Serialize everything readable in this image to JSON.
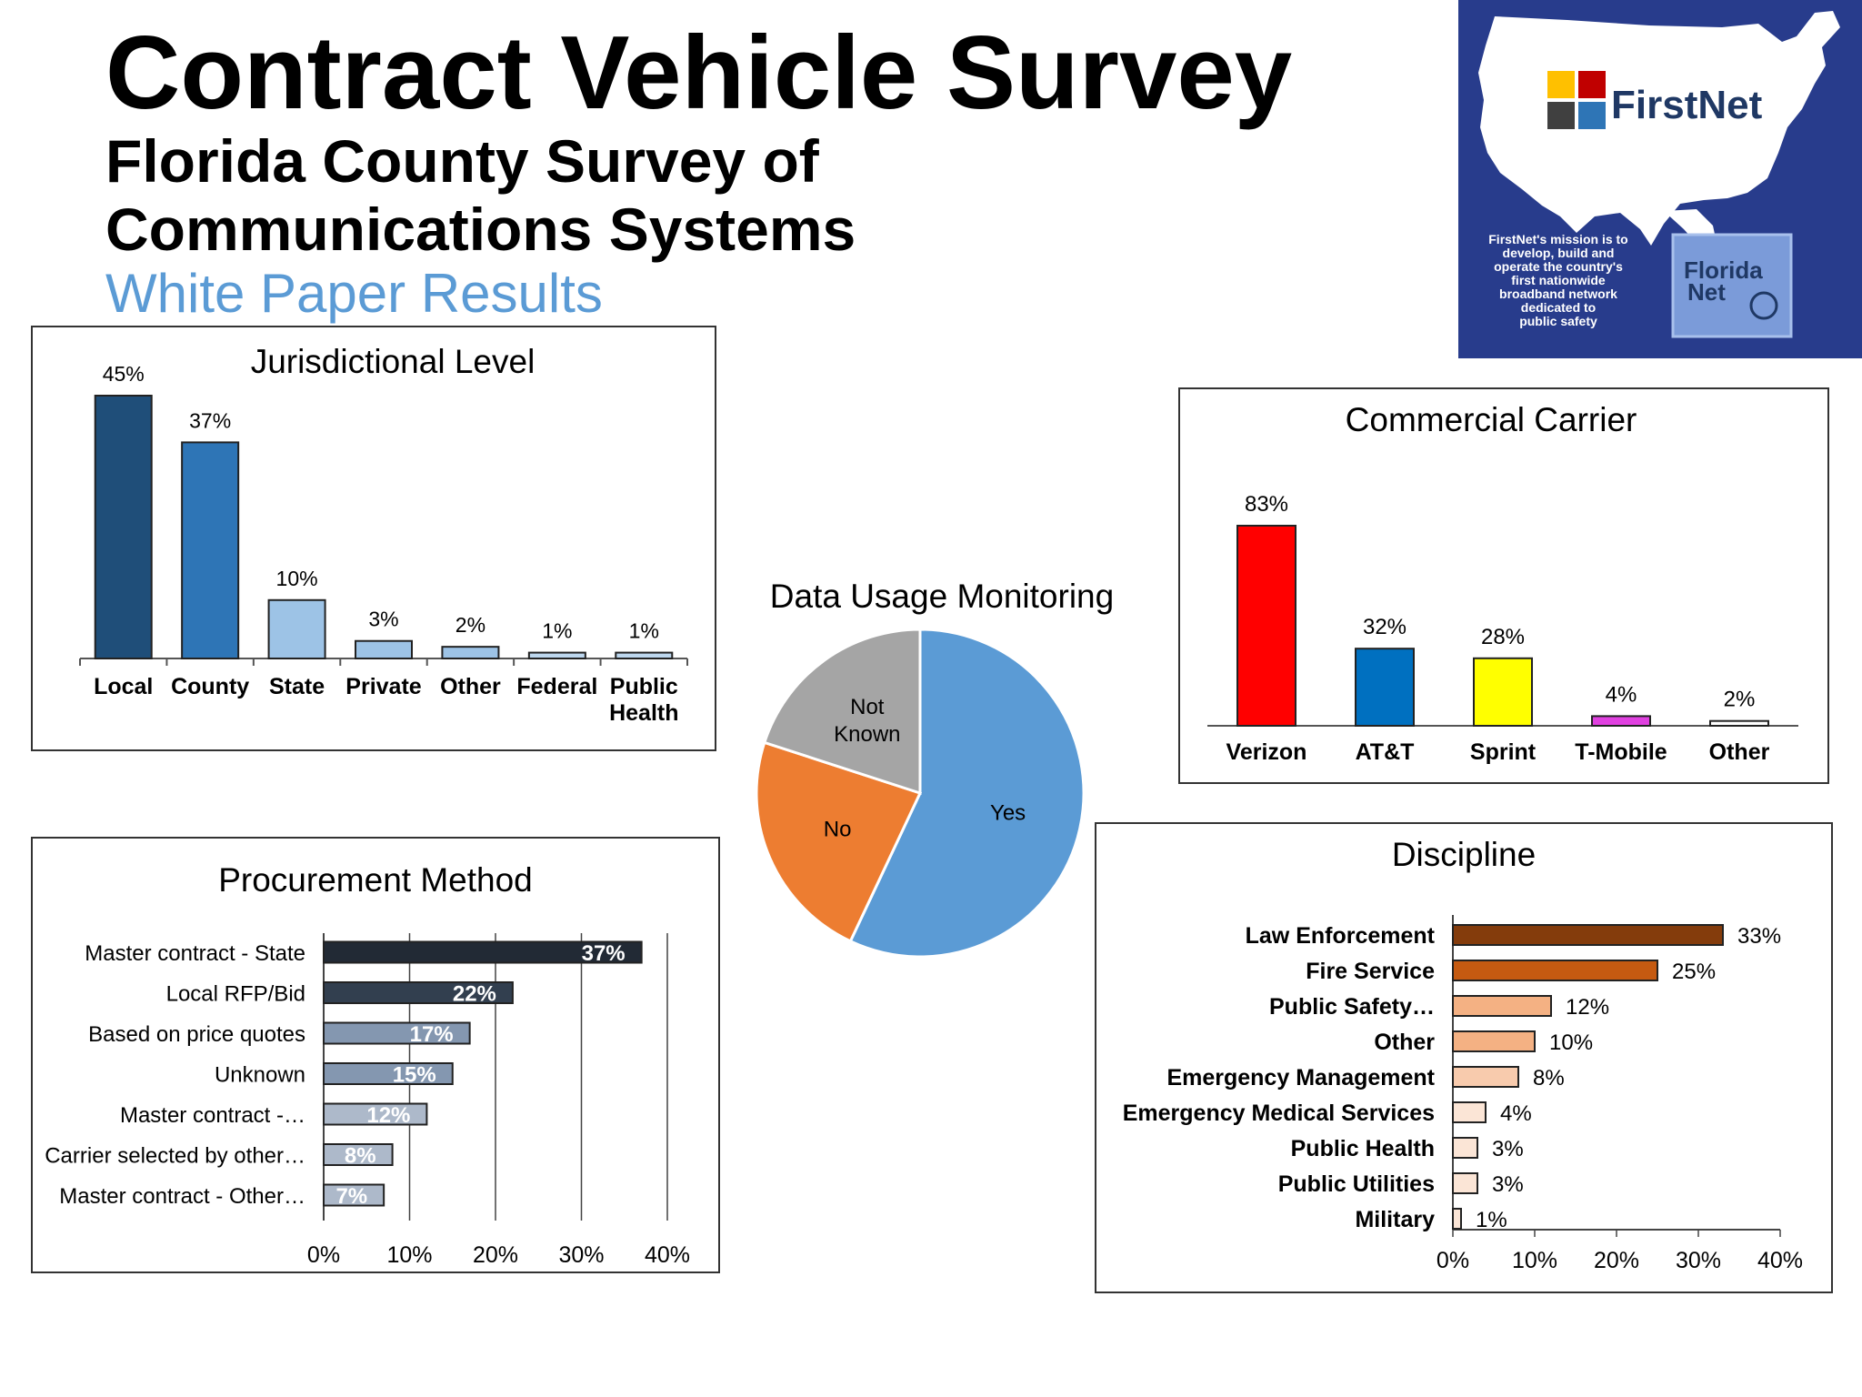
{
  "header": {
    "title": "Contract Vehicle Survey",
    "subtitle_line1": "Florida County Survey of",
    "subtitle_line2": "Communications Systems",
    "tagline": "White Paper Results"
  },
  "logo": {
    "brand": "FirstNet",
    "mission": [
      "FirstNet's mission is to",
      "develop, build and",
      "operate the country's",
      "first nationwide",
      "broadband network",
      "dedicated to",
      "public safety"
    ],
    "badge_line1": "Florida",
    "badge_line2": "Net",
    "colors": {
      "background": "#283c8c",
      "map": "#ffffff"
    }
  },
  "chart_data": [
    {
      "id": "jurisdictional",
      "type": "bar",
      "title": "Jurisdictional Level",
      "categories": [
        "Local",
        "County",
        "State",
        "Private",
        "Other",
        "Federal",
        "Public Health"
      ],
      "values": [
        45,
        37,
        10,
        3,
        2,
        1,
        1
      ],
      "value_labels": [
        "45%",
        "37%",
        "10%",
        "3%",
        "2%",
        "1%",
        "1%"
      ],
      "colors": [
        "#1f4e79",
        "#2e75b6",
        "#9dc3e6",
        "#9dc3e6",
        "#9dc3e6",
        "#bdd7ee",
        "#bdd7ee"
      ],
      "ylim": [
        0,
        45
      ]
    },
    {
      "id": "carrier",
      "type": "bar",
      "title": "Commercial Carrier",
      "categories": [
        "Verizon",
        "AT&T",
        "Sprint",
        "T-Mobile",
        "Other"
      ],
      "values": [
        83,
        32,
        28,
        4,
        2
      ],
      "value_labels": [
        "83%",
        "32%",
        "28%",
        "4%",
        "2%"
      ],
      "colors": [
        "#ff0000",
        "#0070c0",
        "#ffff00",
        "#e040e0",
        "#ffffff"
      ],
      "ylim": [
        0,
        83
      ]
    },
    {
      "id": "data_usage",
      "type": "pie",
      "title": "Data Usage Monitoring",
      "slices": [
        {
          "label": "Yes",
          "value": 57,
          "color": "#5b9bd5"
        },
        {
          "label": "No",
          "value": 23,
          "color": "#ed7d31"
        },
        {
          "label": "Not Known",
          "value": 20,
          "color": "#a5a5a5"
        }
      ]
    },
    {
      "id": "procurement",
      "type": "bar",
      "orientation": "horizontal",
      "title": "Procurement Method",
      "categories": [
        "Master contract - State",
        "Local RFP/Bid",
        "Based on price quotes",
        "Unknown",
        "Master contract -…",
        "Carrier selected by other…",
        "Master contract - Other…"
      ],
      "values": [
        37,
        22,
        17,
        15,
        12,
        8,
        7
      ],
      "value_labels": [
        "37%",
        "22%",
        "17%",
        "15%",
        "12%",
        "8%",
        "7%"
      ],
      "colors": [
        "#222a35",
        "#323f4f",
        "#8497b0",
        "#8497b0",
        "#adb9ca",
        "#adb9ca",
        "#adb9ca"
      ],
      "xlim": [
        0,
        40
      ],
      "xticks": [
        "0%",
        "10%",
        "20%",
        "30%",
        "40%"
      ],
      "grid": true
    },
    {
      "id": "discipline",
      "type": "bar",
      "orientation": "horizontal",
      "title": "Discipline",
      "categories": [
        "Law Enforcement",
        "Fire Service",
        "Public Safety…",
        "Other",
        "Emergency Management",
        "Emergency Medical Services",
        "Public Health",
        "Public Utilities",
        "Military"
      ],
      "values": [
        33,
        25,
        12,
        10,
        8,
        4,
        3,
        3,
        1
      ],
      "value_labels": [
        "33%",
        "25%",
        "12%",
        "10%",
        "8%",
        "4%",
        "3%",
        "3%",
        "1%"
      ],
      "colors": [
        "#843c0c",
        "#c55a11",
        "#f4b183",
        "#f4b183",
        "#f8cbad",
        "#fbe5d6",
        "#fbe5d6",
        "#fbe5d6",
        "#fbe5d6"
      ],
      "xlim": [
        0,
        40
      ],
      "xticks": [
        "0%",
        "10%",
        "20%",
        "30%",
        "40%"
      ],
      "grid": false
    }
  ]
}
